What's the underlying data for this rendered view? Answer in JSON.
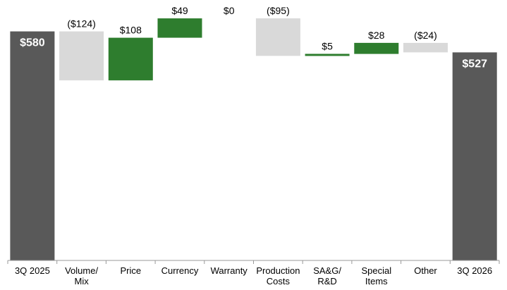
{
  "chart_data": {
    "type": "bar",
    "subtype": "waterfall",
    "title": "",
    "xlabel": "",
    "ylabel": "",
    "grid": false,
    "legend": "none",
    "categories": [
      [
        "3Q 2025"
      ],
      [
        "Volume/",
        "Mix"
      ],
      [
        "Price"
      ],
      [
        "Currency"
      ],
      [
        "Warranty"
      ],
      [
        "Production",
        "Costs"
      ],
      [
        "SA&G/",
        "R&D"
      ],
      [
        "Special",
        "Items"
      ],
      [
        "Other"
      ],
      [
        "3Q 2026"
      ]
    ],
    "values": [
      580,
      -124,
      108,
      49,
      0,
      -95,
      5,
      28,
      -24,
      527
    ],
    "kinds": [
      "total",
      "delta",
      "delta",
      "delta",
      "delta",
      "delta",
      "delta",
      "delta",
      "delta",
      "total"
    ],
    "labels": [
      "$580",
      "($124)",
      "$108",
      "$49",
      "$0",
      "($95)",
      "$5",
      "$28",
      "($24)",
      "$527"
    ],
    "colors": {
      "total": "#595959",
      "increase": "#2e7d2e",
      "decrease": "#d9d9d9",
      "axis": "#999999"
    }
  }
}
